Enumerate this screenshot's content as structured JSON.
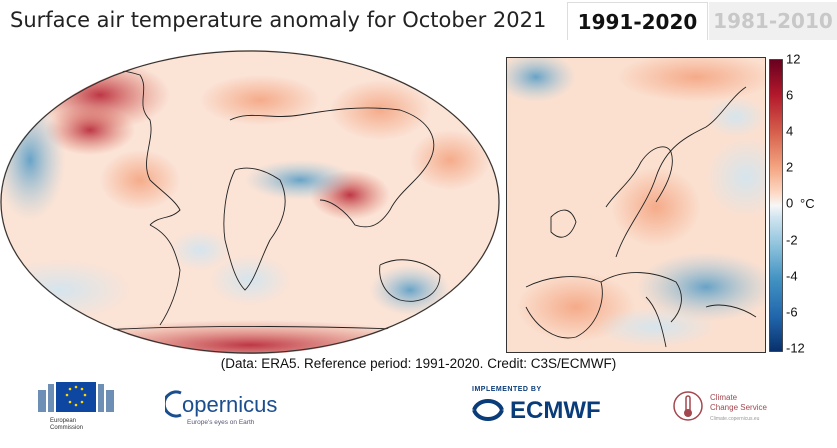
{
  "header": {
    "title": "Surface air temperature anomaly for October 2021",
    "tabs": [
      {
        "label": "1991-2020",
        "active": true
      },
      {
        "label": "1981-2010",
        "active": false
      }
    ]
  },
  "colorbar": {
    "ticks": [
      "12",
      "6",
      "4",
      "2",
      "0",
      "-2",
      "-4",
      "-6",
      "-12"
    ],
    "unit": "°C",
    "colors": [
      "#08306b",
      "#2166ac",
      "#4393c3",
      "#92c5de",
      "#d1e5f0",
      "#f7f7f7",
      "#fddbc7",
      "#f4a582",
      "#d6604d",
      "#b2182b",
      "#67001f"
    ]
  },
  "credits": "(Data: ERA5.  Reference period: 1991-2020.  Credit: C3S/ECMWF)",
  "logos": {
    "eu": {
      "line1": "European",
      "line2": "Commission"
    },
    "copernicus": {
      "name": "opernicus",
      "tagline": "Europe's eyes on Earth"
    },
    "ecmwf": {
      "implemented": "IMPLEMENTED BY",
      "name": "ECMWF"
    },
    "c3s": {
      "line1": "Climate",
      "line2": "Change Service",
      "line3": "Climate.copernicus.eu"
    }
  }
}
